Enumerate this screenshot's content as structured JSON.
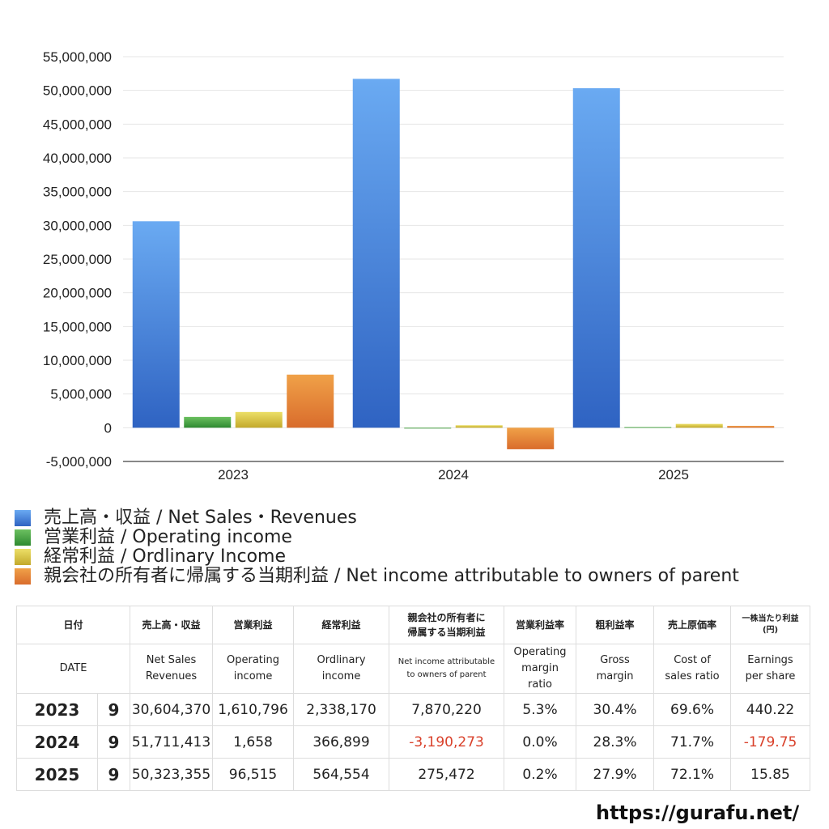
{
  "chart_data": {
    "type": "bar",
    "categories": [
      "2023",
      "2024",
      "2025"
    ],
    "series": [
      {
        "name": "売上高・収益 / Net Sales・Revenues",
        "values": [
          30604370,
          51711413,
          50323355
        ],
        "color_top": "#6aaaf2",
        "color_bottom": "#2f63c2"
      },
      {
        "name": "営業利益 / Operating income",
        "values": [
          1610796,
          1658,
          96515
        ],
        "color_top": "#6cc060",
        "color_bottom": "#2e8a31"
      },
      {
        "name": "経常利益 / Ordlinary Income",
        "values": [
          2338170,
          366899,
          564554
        ],
        "color_top": "#ecdf68",
        "color_bottom": "#c3a92b"
      },
      {
        "name": "親会社の所有者に帰属する当期利益 / Net income attributable to owners of parent",
        "values": [
          7870220,
          -3190273,
          275472
        ],
        "color_top": "#f0a148",
        "color_bottom": "#d96c2c"
      }
    ],
    "yticks": [
      "55,000,000",
      "50,000,000",
      "45,000,000",
      "40,000,000",
      "35,000,000",
      "30,000,000",
      "25,000,000",
      "20,000,000",
      "15,000,000",
      "10,000,000",
      "5,000,000",
      "0",
      "-5,000,000"
    ],
    "ylim": [
      -5000000,
      55000000
    ],
    "grid": true,
    "legend_position": "bottom"
  },
  "table": {
    "header_jp": {
      "date": "日付",
      "sales": "売上高・収益",
      "op": "営業利益",
      "ord": "経常利益",
      "ni_line1": "親会社の所有者に",
      "ni_line2": "帰属する当期利益",
      "opm": "営業利益率",
      "gm": "粗利益率",
      "cos": "売上原価率",
      "eps_line1": "一株当たり利益",
      "eps_line2": "(円)"
    },
    "header_en": {
      "date": "DATE",
      "sales_line1": "Net Sales",
      "sales_line2": "Revenues",
      "op_line1": "Operating",
      "op_line2": "income",
      "ord_line1": "Ordlinary",
      "ord_line2": "income",
      "ni_line1": "Net income attributable",
      "ni_line2": "to owners of parent",
      "opm_line1": "Operating",
      "opm_line2": "margin",
      "opm_line3": "ratio",
      "gm_line1": "Gross",
      "gm_line2": "margin",
      "cos_line1": "Cost of",
      "cos_line2": "sales ratio",
      "eps_line1": "Earnings",
      "eps_line2": "per share"
    },
    "rows": [
      {
        "year": "2023",
        "month": "9",
        "sales": "30,604,370",
        "op": "1,610,796",
        "ord": "2,338,170",
        "ni": "7,870,220",
        "opm": "5.3%",
        "gm": "30.4%",
        "cos": "69.6%",
        "eps": "440.22"
      },
      {
        "year": "2024",
        "month": "9",
        "sales": "51,711,413",
        "op": "1,658",
        "ord": "366,899",
        "ni": "-3,190,273",
        "opm": "0.0%",
        "gm": "28.3%",
        "cos": "71.7%",
        "eps": "-179.75"
      },
      {
        "year": "2025",
        "month": "9",
        "sales": "50,323,355",
        "op": "96,515",
        "ord": "564,554",
        "ni": "275,472",
        "opm": "0.2%",
        "gm": "27.9%",
        "cos": "72.1%",
        "eps": "15.85"
      }
    ]
  },
  "footer": {
    "site": "https://gurafu.net/"
  }
}
